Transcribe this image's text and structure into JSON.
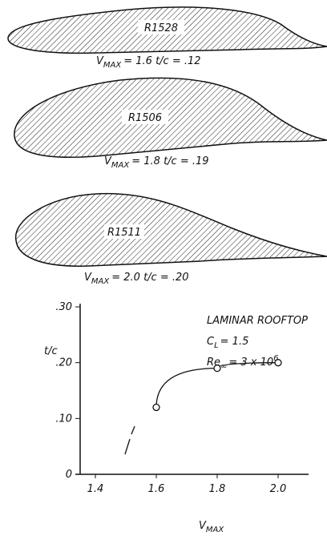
{
  "airfoils": [
    {
      "name": "R1528",
      "v": "V",
      "v_sub": "MAX",
      "caption": "= 1.6   t/c = .12"
    },
    {
      "name": "R1506",
      "v": "V",
      "v_sub": "MAX",
      "caption": "= 1.8   t/c = .19"
    },
    {
      "name": "R1511",
      "v": "V",
      "v_sub": "MAX",
      "caption": "= 2.0   t/c = .20"
    }
  ],
  "chart_data": {
    "type": "line",
    "title": "LAMINAR ROOFTOP",
    "cl": "C",
    "cl_sub": "L",
    "cl_value": "= 1.5",
    "re": "Re",
    "re_sub": "∞",
    "re_value": "= 3 x 10",
    "re_sup": "6",
    "y_label": "t/c",
    "x_label": "V",
    "x_label_sub": "MAX",
    "x": [
      1.6,
      1.8,
      2.0
    ],
    "values": [
      0.12,
      0.19,
      0.2
    ],
    "color": "#111",
    "xlim": [
      1.35,
      2.1
    ],
    "xticks": [
      1.4,
      1.6,
      1.8,
      {
        "value": 2.0,
        "label": "2.0"
      }
    ],
    "ylim": [
      0,
      0.3
    ],
    "yticks": [
      0,
      {
        "value": 0.1,
        "label": ".10"
      },
      {
        "value": 0.2,
        "label": ".20"
      },
      {
        "value": 0.3,
        "label": ".30"
      }
    ]
  }
}
